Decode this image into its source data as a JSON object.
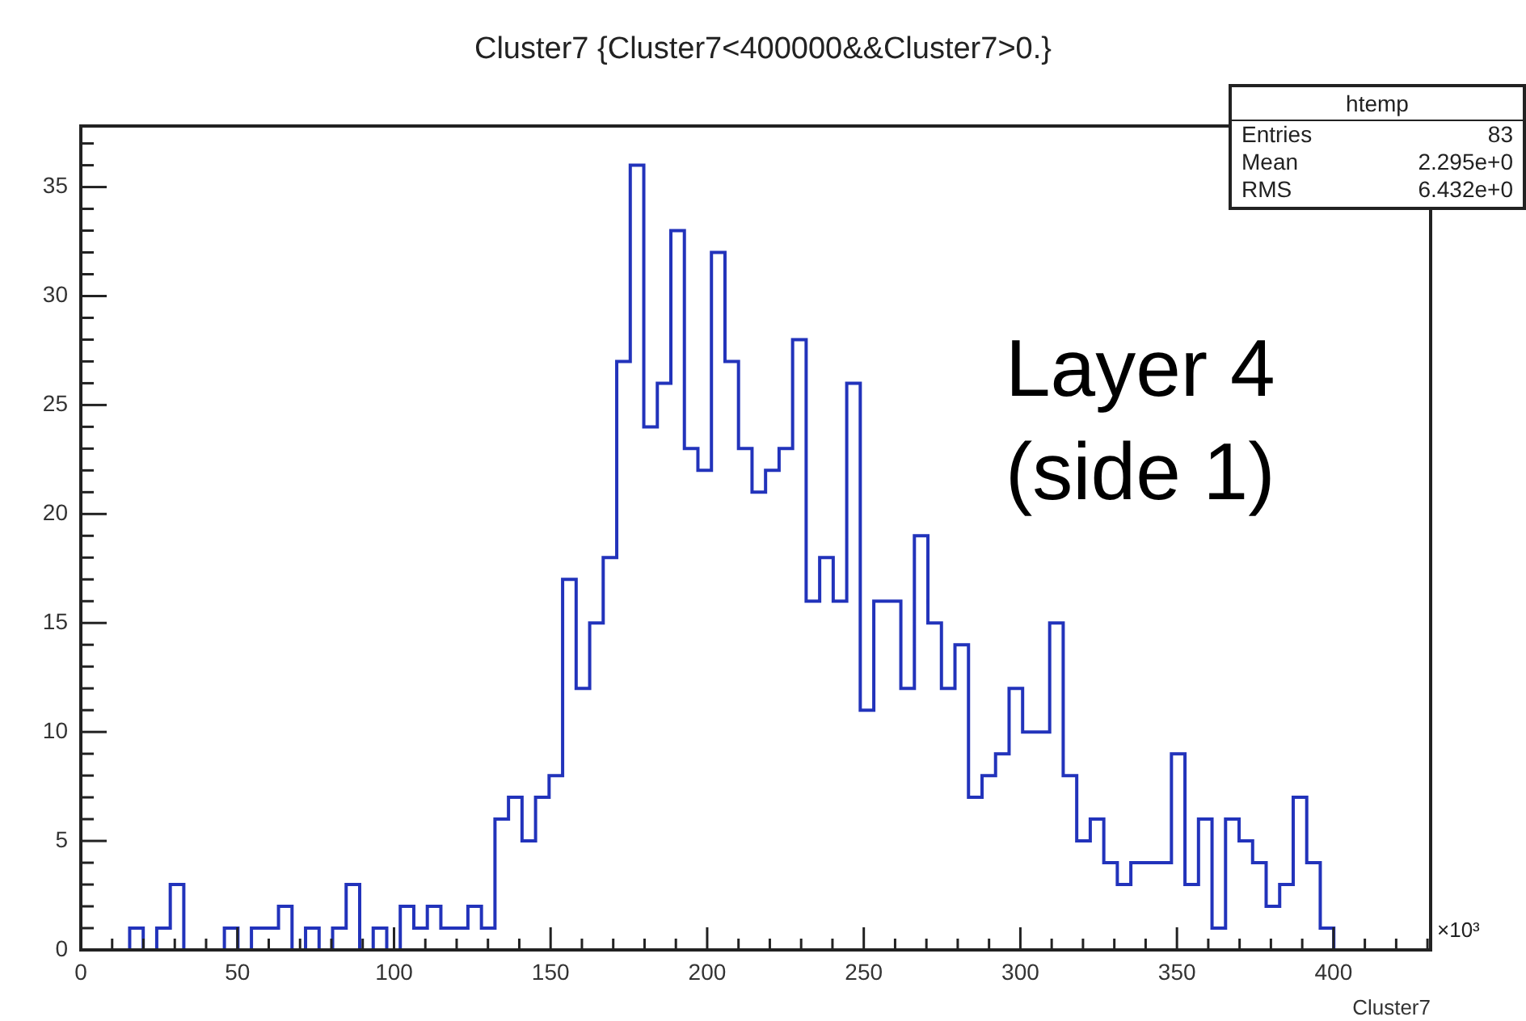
{
  "chart_data": {
    "type": "histogram",
    "title": "Cluster7 {Cluster7<400000&&Cluster7>0.}",
    "xlabel": "Cluster7",
    "color": "#2233bb",
    "bins": [
      15.6,
      19.92,
      24.24,
      28.56,
      32.88,
      37.2,
      41.52,
      45.84,
      50.16,
      54.48,
      58.8,
      63.12,
      67.44,
      71.76,
      76.08,
      80.4,
      84.72,
      89.04,
      93.36,
      97.68,
      102,
      106.32,
      110.64,
      114.96,
      119.28,
      123.6,
      127.92,
      132.24,
      136.56,
      140.88,
      145.2,
      149.52,
      153.84,
      158.16,
      162.48,
      166.8,
      171.12,
      175.44,
      179.76,
      184.08,
      188.4,
      192.72,
      197.04,
      201.36,
      205.68,
      210,
      214.32,
      218.64,
      222.96,
      227.28,
      231.6,
      235.92,
      240.24,
      244.56,
      248.88,
      253.2,
      257.52,
      261.84,
      266.16,
      270.48,
      274.8,
      279.12,
      283.44,
      287.76,
      292.08,
      296.4,
      300.72,
      305.04,
      309.36,
      313.68,
      318,
      322.32,
      326.64,
      330.96,
      335.28,
      339.6,
      343.92,
      348.24,
      352.56,
      356.88,
      361.2,
      365.52,
      369.84,
      374.16,
      378.48,
      382.8,
      387.12,
      391.44,
      395.76,
      400.08
    ],
    "values": [
      1,
      0,
      1,
      3,
      0,
      0,
      0,
      1,
      0,
      1,
      1,
      2,
      0,
      1,
      0,
      1,
      3,
      0,
      1,
      0,
      2,
      1,
      2,
      1,
      1,
      2,
      1,
      6,
      7,
      5,
      7,
      8,
      17,
      12,
      15,
      18,
      27,
      36,
      24,
      26,
      33,
      23,
      22,
      32,
      27,
      23,
      21,
      22,
      23,
      28,
      16,
      18,
      16,
      26,
      11,
      16,
      16,
      12,
      19,
      15,
      12,
      14,
      7,
      8,
      9,
      12,
      10,
      10,
      15,
      8,
      5,
      6,
      4,
      3,
      4,
      4,
      4,
      9,
      3,
      6,
      1,
      6,
      5,
      4,
      2,
      3,
      7,
      4,
      1
    ],
    "xlim": [
      0,
      431
    ],
    "xticks": [
      0,
      {
        "value": 10,
        "label": null
      },
      {
        "value": 20,
        "label": null
      },
      {
        "value": 30,
        "label": null
      },
      {
        "value": 40,
        "label": null
      },
      50,
      {
        "value": 60,
        "label": null
      },
      {
        "value": 70,
        "label": null
      },
      {
        "value": 80,
        "label": null
      },
      {
        "value": 90,
        "label": null
      },
      100,
      {
        "value": 110,
        "label": null
      },
      {
        "value": 120,
        "label": null
      },
      {
        "value": 130,
        "label": null
      },
      {
        "value": 140,
        "label": null
      },
      150,
      {
        "value": 160,
        "label": null
      },
      {
        "value": 170,
        "label": null
      },
      {
        "value": 180,
        "label": null
      },
      {
        "value": 190,
        "label": null
      },
      200,
      {
        "value": 210,
        "label": null
      },
      {
        "value": 220,
        "label": null
      },
      {
        "value": 230,
        "label": null
      },
      {
        "value": 240,
        "label": null
      },
      250,
      {
        "value": 260,
        "label": null
      },
      {
        "value": 270,
        "label": null
      },
      {
        "value": 280,
        "label": null
      },
      {
        "value": 290,
        "label": null
      },
      300,
      {
        "value": 310,
        "label": null
      },
      {
        "value": 320,
        "label": null
      },
      {
        "value": 330,
        "label": null
      },
      {
        "value": 340,
        "label": null
      },
      350,
      {
        "value": 360,
        "label": null
      },
      {
        "value": 370,
        "label": null
      },
      {
        "value": 380,
        "label": null
      },
      {
        "value": 390,
        "label": null
      },
      400,
      {
        "value": 410,
        "label": null
      },
      {
        "value": 420,
        "label": null
      },
      {
        "value": 430,
        "label": null
      }
    ],
    "ylim": [
      0,
      37.8
    ],
    "yticks": [
      0,
      {
        "value": 1,
        "label": null
      },
      {
        "value": 2,
        "label": null
      },
      {
        "value": 3,
        "label": null
      },
      {
        "value": 4,
        "label": null
      },
      5,
      {
        "value": 6,
        "label": null
      },
      {
        "value": 7,
        "label": null
      },
      {
        "value": 8,
        "label": null
      },
      {
        "value": 9,
        "label": null
      },
      10,
      {
        "value": 11,
        "label": null
      },
      {
        "value": 12,
        "label": null
      },
      {
        "value": 13,
        "label": null
      },
      {
        "value": 14,
        "label": null
      },
      15,
      {
        "value": 16,
        "label": null
      },
      {
        "value": 17,
        "label": null
      },
      {
        "value": 18,
        "label": null
      },
      {
        "value": 19,
        "label": null
      },
      20,
      {
        "value": 21,
        "label": null
      },
      {
        "value": 22,
        "label": null
      },
      {
        "value": 23,
        "label": null
      },
      {
        "value": 24,
        "label": null
      },
      25,
      {
        "value": 26,
        "label": null
      },
      {
        "value": 27,
        "label": null
      },
      {
        "value": 28,
        "label": null
      },
      {
        "value": 29,
        "label": null
      },
      30,
      {
        "value": 31,
        "label": null
      },
      {
        "value": 32,
        "label": null
      },
      {
        "value": 33,
        "label": null
      },
      {
        "value": 34,
        "label": null
      },
      35,
      {
        "value": 36,
        "label": null
      },
      {
        "value": 37,
        "label": null
      }
    ],
    "annotations": [
      "×10³",
      "Layer 4 (side 1)",
      "htemp",
      "Entries",
      "83",
      "Mean",
      "2.295e+0",
      "RMS",
      "6.432e+0"
    ]
  }
}
